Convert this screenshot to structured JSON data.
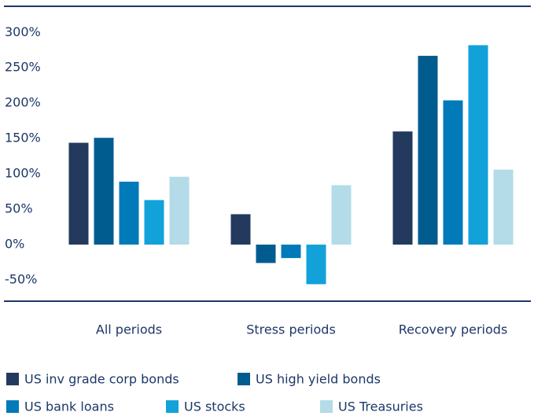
{
  "chart_data": {
    "type": "bar",
    "categories": [
      "All periods",
      "Stress periods",
      "Recovery periods"
    ],
    "series": [
      {
        "name": "US inv grade corp bonds",
        "color": "#233a5e",
        "values": [
          144,
          43,
          160
        ]
      },
      {
        "name": "US high yield bonds",
        "color": "#005c8f",
        "values": [
          151,
          -26,
          267
        ]
      },
      {
        "name": "US bank loans",
        "color": "#007ab8",
        "values": [
          89,
          -19,
          204
        ]
      },
      {
        "name": "US stocks",
        "color": "#12a2d9",
        "values": [
          63,
          -56,
          282
        ]
      },
      {
        "name": "US Treasuries",
        "color": "#b3dbe8",
        "values": [
          96,
          84,
          106
        ]
      }
    ],
    "ylim": [
      -80,
      337
    ],
    "yticks": [
      {
        "value": -50,
        "label": "-50%"
      },
      {
        "value": 0,
        "label": "0%"
      },
      {
        "value": 50,
        "label": "50%"
      },
      {
        "value": 100,
        "label": "100%"
      },
      {
        "value": 150,
        "label": "150%"
      },
      {
        "value": 200,
        "label": "200%"
      },
      {
        "value": 250,
        "label": "250%"
      },
      {
        "value": 300,
        "label": "300%"
      }
    ],
    "grid": false
  }
}
